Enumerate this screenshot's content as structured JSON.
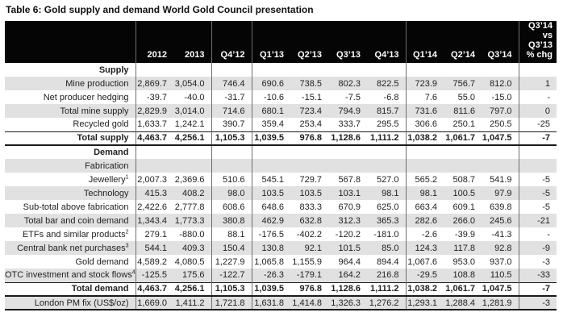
{
  "title": "Table 6: Gold supply and demand World Gold Council presentation",
  "colors": {
    "header_bg": "#050505",
    "header_text": "#ffffff",
    "shaded_row": "#e1e1e1",
    "rule": "#1a1a1a",
    "divider": "#6e6e6e",
    "text": "#1f1f1f"
  },
  "table": {
    "columns": [
      "",
      "2012",
      "2013",
      "Q4’12",
      "Q1’13",
      "Q2’13",
      "Q3’13",
      "Q4’13",
      "Q1’14",
      "Q2’14",
      "Q3’14"
    ],
    "pct_header_lines": [
      "Q3’14",
      "vs",
      "Q3’13",
      "% chg"
    ],
    "rows": [
      {
        "label": "Supply",
        "type": "section",
        "indent": 0,
        "shaded": false,
        "values": [
          "",
          "",
          "",
          "",
          "",
          "",
          "",
          "",
          "",
          "",
          ""
        ]
      },
      {
        "label": "Mine production",
        "type": "data",
        "indent": 2,
        "shaded": true,
        "values": [
          "2,869.7",
          "3,054.0",
          "746.4",
          "690.6",
          "738.5",
          "802.3",
          "822.5",
          "723.9",
          "756.7",
          "812.0",
          "1"
        ]
      },
      {
        "label": "Net producer hedging",
        "type": "data",
        "indent": 2,
        "shaded": false,
        "values": [
          "-39.7",
          "-40.0",
          "-31.7",
          "-10.6",
          "-15.1",
          "-7.5",
          "-6.8",
          "7.6",
          "55.0",
          "-15.0",
          "-"
        ]
      },
      {
        "label": "Total mine supply",
        "type": "data",
        "indent": 1,
        "shaded": true,
        "values": [
          "2,829.9",
          "3,014.0",
          "714.6",
          "680.1",
          "723.4",
          "794.9",
          "815.7",
          "731.6",
          "811.6",
          "797.0",
          "0"
        ]
      },
      {
        "label": "Recycled gold",
        "type": "data",
        "indent": 1,
        "shaded": false,
        "values": [
          "1,633.7",
          "1,242.1",
          "390.7",
          "359.4",
          "253.4",
          "333.7",
          "295.5",
          "306.6",
          "250.1",
          "250.5",
          "-25"
        ]
      },
      {
        "label": "Total supply",
        "type": "total",
        "indent": 0,
        "shaded": false,
        "values": [
          "4,463.7",
          "4,256.1",
          "1,105.3",
          "1,039.5",
          "976.8",
          "1,128.6",
          "1,111.2",
          "1,038.2",
          "1,061.7",
          "1,047.5",
          "-7"
        ]
      },
      {
        "label": "Demand",
        "type": "section",
        "indent": 0,
        "shaded": false,
        "values": [
          "",
          "",
          "",
          "",
          "",
          "",
          "",
          "",
          "",
          "",
          ""
        ]
      },
      {
        "label": "Fabrication",
        "type": "data",
        "indent": 1,
        "shaded": true,
        "values": [
          "",
          "",
          "",
          "",
          "",
          "",
          "",
          "",
          "",
          "",
          ""
        ]
      },
      {
        "label": "Jewellery",
        "sup": "1",
        "type": "data",
        "indent": 2,
        "shaded": false,
        "values": [
          "2,007.3",
          "2,369.6",
          "510.6",
          "545.1",
          "729.7",
          "567.8",
          "527.0",
          "565.2",
          "508.7",
          "541.9",
          "-5"
        ]
      },
      {
        "label": "Technology",
        "type": "data",
        "indent": 2,
        "shaded": true,
        "values": [
          "415.3",
          "408.2",
          "98.0",
          "103.5",
          "103.5",
          "103.1",
          "98.1",
          "98.1",
          "100.5",
          "97.9",
          "-5"
        ]
      },
      {
        "label": "Sub-total above fabrication",
        "type": "data",
        "indent": 1,
        "shaded": false,
        "values": [
          "2,422.6",
          "2,777.8",
          "608.6",
          "648.6",
          "833.3",
          "670.9",
          "625.0",
          "663.4",
          "609.1",
          "639.8",
          "-5"
        ]
      },
      {
        "label": "Total bar and coin demand",
        "type": "data",
        "indent": 1,
        "shaded": true,
        "values": [
          "1,343.4",
          "1,773.3",
          "380.8",
          "462.9",
          "632.8",
          "312.3",
          "365.3",
          "282.6",
          "266.0",
          "245.6",
          "-21"
        ]
      },
      {
        "label": "ETFs and similar products",
        "sup": "2",
        "type": "data",
        "indent": 1,
        "shaded": false,
        "values": [
          "279.1",
          "-880.0",
          "88.1",
          "-176.5",
          "-402.2",
          "-120.2",
          "-181.0",
          "-2.6",
          "-39.9",
          "-41.3",
          "-"
        ]
      },
      {
        "label": "Central bank net purchases",
        "sup": "3",
        "type": "data",
        "indent": 1,
        "shaded": true,
        "values": [
          "544.1",
          "409.3",
          "150.4",
          "130.8",
          "92.1",
          "101.5",
          "85.0",
          "124.3",
          "117.8",
          "92.8",
          "-9"
        ]
      },
      {
        "label": "Gold demand",
        "type": "data",
        "indent": 1,
        "shaded": false,
        "values": [
          "4,589.2",
          "4,080.5",
          "1,227.9",
          "1,065.8",
          "1,155.9",
          "964.4",
          "894.4",
          "1,067.6",
          "953.0",
          "937.0",
          "-3"
        ]
      },
      {
        "label": "OTC investment and stock flows",
        "sup": "4",
        "type": "data",
        "indent": 1,
        "shaded": true,
        "values": [
          "-125.5",
          "175.6",
          "-122.7",
          "-26.3",
          "-179.1",
          "164.2",
          "216.8",
          "-29.5",
          "108.8",
          "110.5",
          "-33"
        ]
      },
      {
        "label": "Total demand",
        "type": "total",
        "indent": 0,
        "shaded": false,
        "values": [
          "4,463.7",
          "4,256.1",
          "1,105.3",
          "1,039.5",
          "976.8",
          "1,128.6",
          "1,111.2",
          "1,038.2",
          "1,061.7",
          "1,047.5",
          "-7"
        ]
      },
      {
        "label": "London PM fix (US$/oz)",
        "type": "data",
        "indent": 1,
        "shaded": true,
        "values": [
          "1,669.0",
          "1,411.2",
          "1,721.8",
          "1,631.8",
          "1,414.8",
          "1,326.3",
          "1,276.2",
          "1,293.1",
          "1,288.4",
          "1,281.9",
          "-3"
        ]
      }
    ]
  }
}
